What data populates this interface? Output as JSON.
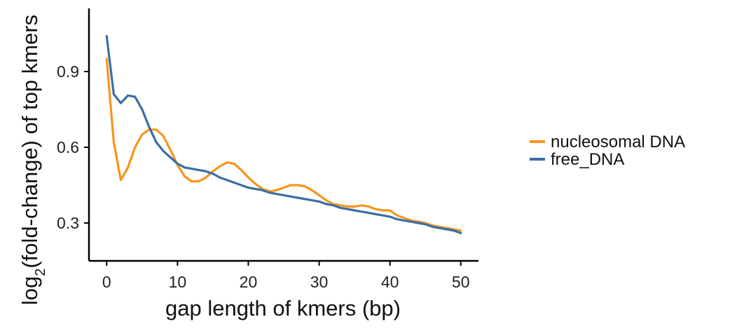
{
  "chart_data": {
    "type": "line",
    "xlabel": "gap length of kmers (bp)",
    "ylabel": {
      "prefix": "log",
      "subscript": "2",
      "suffix": "(fold-change) of top kmers"
    },
    "xlim": [
      -2.5,
      52.5
    ],
    "ylim": [
      0.15,
      1.15
    ],
    "xticks": [
      0,
      10,
      20,
      30,
      40,
      50
    ],
    "yticks": [
      0.3,
      0.6,
      0.9
    ],
    "ytick_labels": [
      "0.3",
      "0.6",
      "0.9"
    ],
    "grid": false,
    "legend_position": "right",
    "x": [
      0,
      1,
      2,
      3,
      4,
      5,
      6,
      7,
      8,
      9,
      10,
      11,
      12,
      13,
      14,
      15,
      16,
      17,
      18,
      19,
      20,
      21,
      22,
      23,
      24,
      25,
      26,
      27,
      28,
      29,
      30,
      31,
      32,
      33,
      34,
      35,
      36,
      37,
      38,
      39,
      40,
      41,
      42,
      43,
      44,
      45,
      46,
      47,
      48,
      49,
      50
    ],
    "series": [
      {
        "name": "nucleosomal DNA",
        "color": "#F7941D",
        "values": [
          0.95,
          0.62,
          0.47,
          0.52,
          0.6,
          0.65,
          0.67,
          0.67,
          0.645,
          0.59,
          0.53,
          0.485,
          0.465,
          0.465,
          0.48,
          0.505,
          0.525,
          0.54,
          0.535,
          0.51,
          0.48,
          0.455,
          0.435,
          0.425,
          0.43,
          0.44,
          0.45,
          0.45,
          0.445,
          0.43,
          0.41,
          0.39,
          0.375,
          0.37,
          0.365,
          0.365,
          0.37,
          0.365,
          0.355,
          0.35,
          0.35,
          0.33,
          0.32,
          0.31,
          0.305,
          0.3,
          0.29,
          0.285,
          0.28,
          0.275,
          0.27
        ]
      },
      {
        "name": "free_DNA",
        "color": "#3A6EA5",
        "values": [
          1.04,
          0.81,
          0.775,
          0.805,
          0.8,
          0.75,
          0.68,
          0.62,
          0.585,
          0.56,
          0.535,
          0.52,
          0.515,
          0.51,
          0.505,
          0.495,
          0.48,
          0.47,
          0.46,
          0.45,
          0.44,
          0.435,
          0.43,
          0.42,
          0.415,
          0.41,
          0.405,
          0.4,
          0.395,
          0.39,
          0.385,
          0.375,
          0.37,
          0.36,
          0.355,
          0.35,
          0.345,
          0.34,
          0.335,
          0.33,
          0.325,
          0.315,
          0.31,
          0.305,
          0.3,
          0.295,
          0.285,
          0.28,
          0.275,
          0.27,
          0.26
        ]
      }
    ]
  }
}
